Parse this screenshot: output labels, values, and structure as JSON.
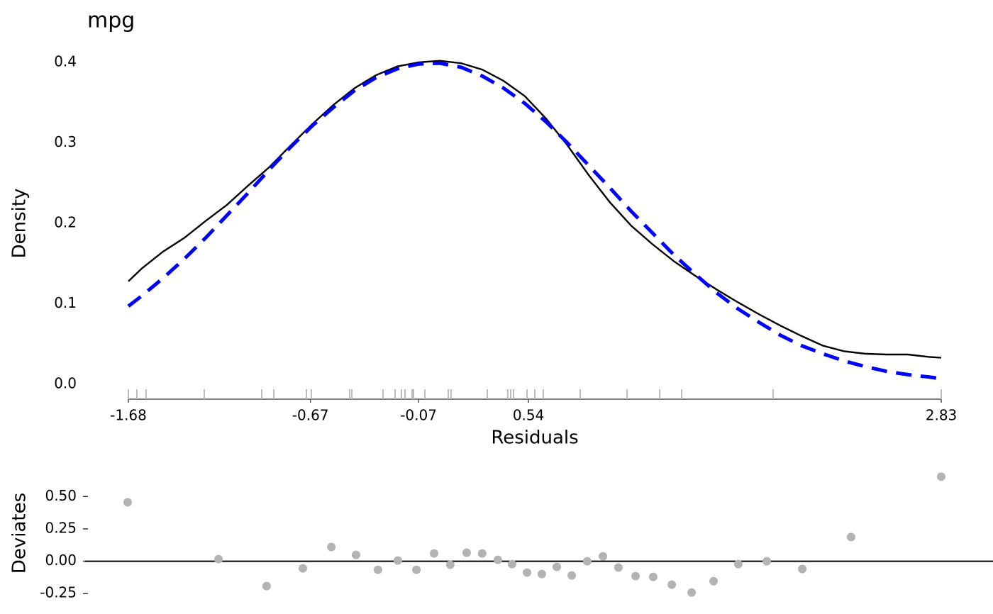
{
  "chart_data": [
    {
      "type": "density",
      "title": "mpg",
      "x_label": "Residuals",
      "y_label": "Density",
      "x": [
        -1.68,
        -1.605,
        -1.487,
        -1.369,
        -1.251,
        -1.133,
        -1.015,
        -0.897,
        -0.779,
        -0.661,
        -0.543,
        -0.425,
        -0.307,
        -0.188,
        -0.07,
        0.048,
        0.166,
        0.284,
        0.402,
        0.52,
        0.638,
        0.756,
        0.874,
        0.992,
        1.11,
        1.228,
        1.346,
        1.464,
        1.582,
        1.701,
        1.819,
        1.937,
        2.055,
        2.173,
        2.291,
        2.409,
        2.527,
        2.645,
        2.763,
        2.83
      ],
      "series": [
        {
          "color": "#000000",
          "linestyle": "solid",
          "values": [
            0.128,
            0.144,
            0.165,
            0.182,
            0.203,
            0.223,
            0.247,
            0.27,
            0.297,
            0.323,
            0.347,
            0.368,
            0.384,
            0.395,
            0.4,
            0.402,
            0.399,
            0.391,
            0.377,
            0.358,
            0.33,
            0.297,
            0.26,
            0.226,
            0.197,
            0.174,
            0.153,
            0.135,
            0.118,
            0.102,
            0.087,
            0.073,
            0.06,
            0.048,
            0.041,
            0.038,
            0.037,
            0.037,
            0.034,
            0.033
          ]
        },
        {
          "color": "#0000ff",
          "linestyle": "dashed",
          "values": [
            0.097,
            0.11,
            0.132,
            0.156,
            0.182,
            0.21,
            0.238,
            0.267,
            0.295,
            0.321,
            0.344,
            0.365,
            0.381,
            0.392,
            0.398,
            0.399,
            0.394,
            0.383,
            0.368,
            0.349,
            0.326,
            0.3,
            0.272,
            0.244,
            0.215,
            0.188,
            0.161,
            0.137,
            0.114,
            0.094,
            0.077,
            0.061,
            0.048,
            0.038,
            0.029,
            0.022,
            0.016,
            0.012,
            0.009,
            0.007
          ]
        }
      ],
      "rug": [
        -1.68,
        -1.633,
        -1.582,
        -1.259,
        -0.94,
        -0.873,
        -0.692,
        -0.665,
        -0.452,
        -0.44,
        -0.267,
        -0.2,
        -0.165,
        -0.145,
        -0.106,
        -0.098,
        -0.035,
        0.095,
        0.11,
        0.311,
        0.425,
        0.441,
        0.457,
        0.532,
        0.575,
        0.622,
        0.827,
        1.087,
        1.268,
        1.39,
        1.897,
        2.83
      ],
      "rug_color": "#bbbbbb",
      "xlim": [
        -1.68,
        2.83
      ],
      "xticks": [
        -1.68,
        -0.67,
        -0.07,
        0.54,
        2.83
      ],
      "ylim": [
        0,
        0.4
      ],
      "yticks": [
        {
          "value": 0,
          "label": "0.0"
        },
        0.1,
        0.2,
        0.3,
        0.4
      ]
    },
    {
      "type": "scatter",
      "y_label": "Deviates",
      "color": "#b3b3b3",
      "hline": 0,
      "x": [
        -1.684,
        -1.18,
        -0.913,
        -0.712,
        -0.554,
        -0.417,
        -0.295,
        -0.185,
        -0.082,
        0.016,
        0.106,
        0.197,
        0.283,
        0.37,
        0.449,
        0.532,
        0.614,
        0.697,
        0.78,
        0.866,
        0.953,
        1.039,
        1.134,
        1.232,
        1.335,
        1.445,
        1.567,
        1.704,
        1.862,
        2.059,
        2.33,
        2.83
      ],
      "values": [
        0.456,
        0.016,
        -0.192,
        -0.055,
        0.11,
        0.049,
        -0.066,
        0.005,
        -0.066,
        0.06,
        -0.027,
        0.066,
        0.06,
        0.011,
        -0.022,
        -0.088,
        -0.099,
        -0.044,
        -0.11,
        0.0,
        0.038,
        -0.049,
        -0.115,
        -0.121,
        -0.181,
        -0.242,
        -0.154,
        -0.022,
        0.0,
        -0.06,
        0.187,
        0.654
      ],
      "xlim": [
        -1.68,
        2.83
      ],
      "ylim": [
        -0.32,
        0.71
      ],
      "yticks": [
        {
          "value": 0.5,
          "label": "0.50"
        },
        {
          "value": 0.25,
          "label": "0.25"
        },
        {
          "value": 0,
          "label": "0.00"
        },
        {
          "value": -0.25,
          "label": "-0.25"
        }
      ]
    }
  ]
}
